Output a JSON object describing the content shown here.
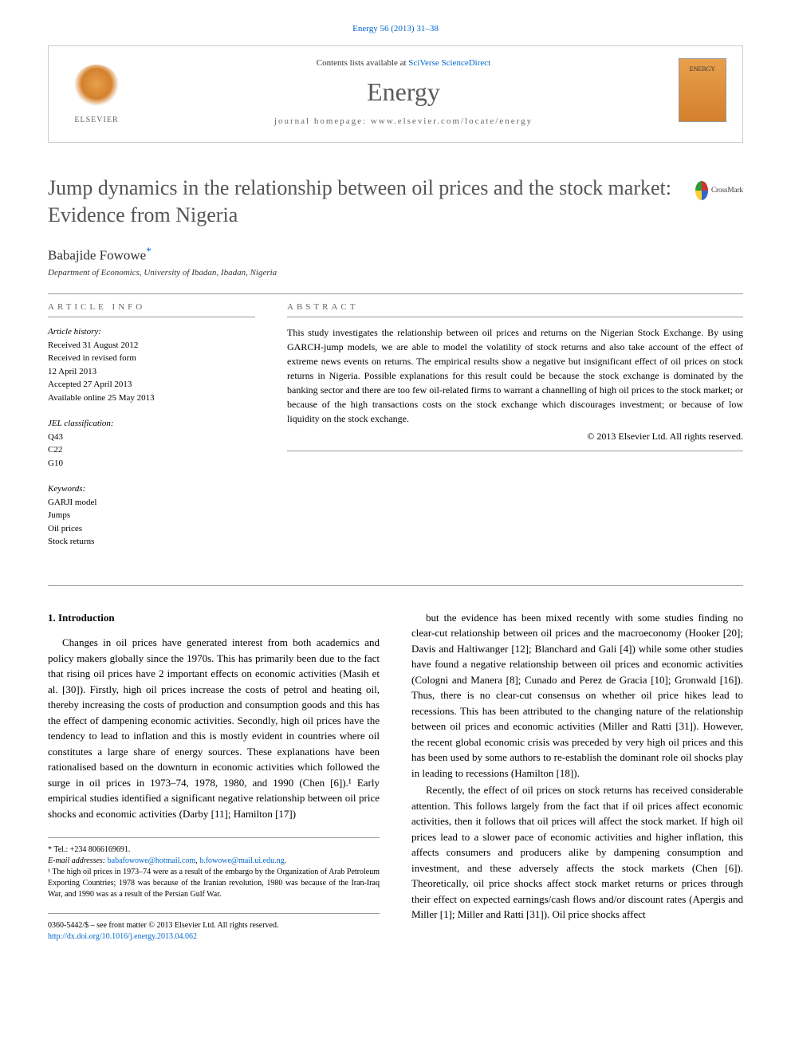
{
  "journal_ref": "Energy 56 (2013) 31–38",
  "header": {
    "publisher": "ELSEVIER",
    "contents_text": "Contents lists available at ",
    "contents_link": "SciVerse ScienceDirect",
    "journal_name": "Energy",
    "homepage_label": "journal homepage: ",
    "homepage_url": "www.elsevier.com/locate/energy",
    "cover_text": "ENERGY"
  },
  "crossmark": "CrossMark",
  "title": "Jump dynamics in the relationship between oil prices and the stock market: Evidence from Nigeria",
  "author": "Babajide Fowowe",
  "author_mark": "*",
  "affiliation": "Department of Economics, University of Ibadan, Ibadan, Nigeria",
  "info": {
    "label": "ARTICLE INFO",
    "history_label": "Article history:",
    "history": [
      "Received 31 August 2012",
      "Received in revised form",
      "12 April 2013",
      "Accepted 27 April 2013",
      "Available online 25 May 2013"
    ],
    "jel_label": "JEL classification:",
    "jel": [
      "Q43",
      "C22",
      "G10"
    ],
    "keywords_label": "Keywords:",
    "keywords": [
      "GARJI model",
      "Jumps",
      "Oil prices",
      "Stock returns"
    ]
  },
  "abstract": {
    "label": "ABSTRACT",
    "text": "This study investigates the relationship between oil prices and returns on the Nigerian Stock Exchange. By using GARCH-jump models, we are able to model the volatility of stock returns and also take account of the effect of extreme news events on returns. The empirical results show a negative but insignificant effect of oil prices on stock returns in Nigeria. Possible explanations for this result could be because the stock exchange is dominated by the banking sector and there are too few oil-related firms to warrant a channelling of high oil prices to the stock market; or because of the high transactions costs on the stock exchange which discourages investment; or because of low liquidity on the stock exchange.",
    "copyright": "© 2013 Elsevier Ltd. All rights reserved."
  },
  "body": {
    "heading": "1. Introduction",
    "col1_p1": "Changes in oil prices have generated interest from both academics and policy makers globally since the 1970s. This has primarily been due to the fact that rising oil prices have 2 important effects on economic activities (Masih et al. [30]). Firstly, high oil prices increase the costs of petrol and heating oil, thereby increasing the costs of production and consumption goods and this has the effect of dampening economic activities. Secondly, high oil prices have the tendency to lead to inflation and this is mostly evident in countries where oil constitutes a large share of energy sources. These explanations have been rationalised based on the downturn in economic activities which followed the surge in oil prices in 1973–74, 1978, 1980, and 1990 (Chen [6]).¹ Early empirical studies identified a significant negative relationship between oil price shocks and economic activities (Darby [11]; Hamilton [17])",
    "col2_p1": "but the evidence has been mixed recently with some studies finding no clear-cut relationship between oil prices and the macroeconomy (Hooker [20]; Davis and Haltiwanger [12]; Blanchard and Gali [4]) while some other studies have found a negative relationship between oil prices and economic activities (Cologni and Manera [8]; Cunado and Perez de Gracia [10]; Gronwald [16]). Thus, there is no clear-cut consensus on whether oil price hikes lead to recessions. This has been attributed to the changing nature of the relationship between oil prices and economic activities (Miller and Ratti [31]). However, the recent global economic crisis was preceded by very high oil prices and this has been used by some authors to re-establish the dominant role oil shocks play in leading to recessions (Hamilton [18]).",
    "col2_p2": "Recently, the effect of oil prices on stock returns has received considerable attention. This follows largely from the fact that if oil prices affect economic activities, then it follows that oil prices will affect the stock market. If high oil prices lead to a slower pace of economic activities and higher inflation, this affects consumers and producers alike by dampening consumption and investment, and these adversely affects the stock markets (Chen [6]). Theoretically, oil price shocks affect stock market returns or prices through their effect on expected earnings/cash flows and/or discount rates (Apergis and Miller [1]; Miller and Ratti [31]). Oil price shocks affect"
  },
  "footnotes": {
    "tel_label": "* Tel.: ",
    "tel": "+234 8066169691.",
    "email_label": "E-mail addresses: ",
    "email1": "babafowowe@hotmail.com",
    "email2": "b.fowowe@mail.ui.edu.ng",
    "note1": "¹ The high oil prices in 1973–74 were as a result of the embargo by the Organization of Arab Petroleum Exporting Countries; 1978 was because of the Iranian revolution, 1980 was because of the Iran-Iraq War, and 1990 was as a result of the Persian Gulf War."
  },
  "footer": {
    "issn": "0360-5442/$ – see front matter © 2013 Elsevier Ltd. All rights reserved.",
    "doi": "http://dx.doi.org/10.1016/j.energy.2013.04.062"
  },
  "colors": {
    "link": "#0066cc",
    "title_gray": "#555555",
    "text": "#000000",
    "border": "#999999"
  }
}
